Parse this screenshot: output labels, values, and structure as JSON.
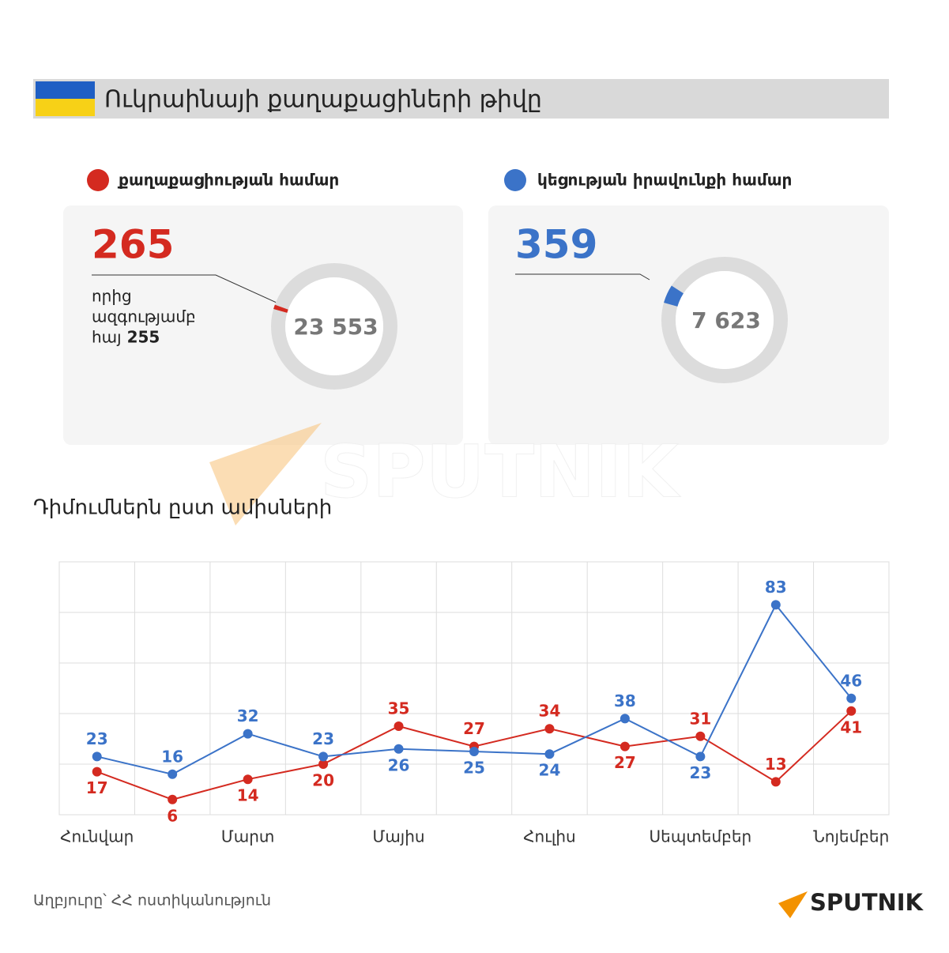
{
  "header": {
    "title": "Ուկրաինայի քաղաքացիների թիվը"
  },
  "cards": [
    {
      "legend": "քաղաքացիության համար",
      "color": "#d42a20",
      "value": 265,
      "note": [
        "որից",
        "ազգությամբ",
        "հայ"
      ],
      "note_value": 255,
      "total": {
        "value": 23553,
        "label": "23 553"
      }
    },
    {
      "legend": "կեցության իրավունքի համար",
      "color": "#3b73c8",
      "value": 359,
      "total": {
        "value": 7623,
        "label": "7 623"
      }
    }
  ],
  "watermark": "SPUTNIK",
  "chart_data": {
    "type": "line",
    "title": "Դիմումներն ըստ ամիսների",
    "categories": [
      "Հունվար",
      null,
      "Մարտ",
      null,
      "Մայիս",
      null,
      "Հուլիս",
      null,
      "Սեպտեմբեր",
      null,
      "Նոյեմբեր"
    ],
    "series": [
      {
        "color": "#d42a20",
        "values": [
          17,
          6,
          14,
          20,
          35,
          27,
          34,
          27,
          31,
          13,
          41
        ]
      },
      {
        "color": "#3b73c8",
        "values": [
          23,
          16,
          32,
          23,
          26,
          25,
          24,
          38,
          23,
          83,
          46
        ]
      }
    ],
    "ylim": [
      0,
      100
    ],
    "yticks": [
      0,
      20,
      40,
      60,
      80,
      100
    ],
    "grid": true
  },
  "source": "Աղբյուրը՝ ՀՀ ոստիկանություն",
  "logo": "SPUTNIK"
}
